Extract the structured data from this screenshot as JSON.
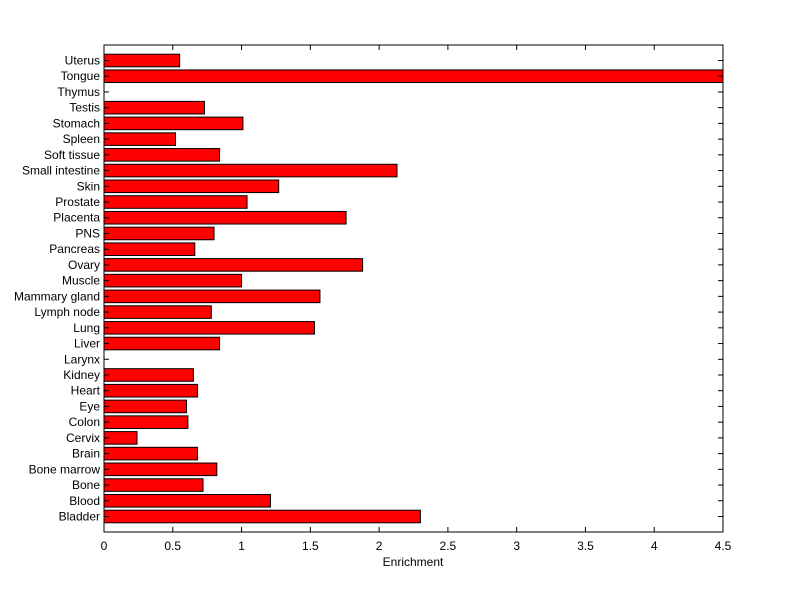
{
  "chart_data": {
    "type": "bar",
    "orientation": "horizontal",
    "title": "",
    "xlabel": "Enrichment",
    "ylabel": "",
    "xlim": [
      0,
      4.5
    ],
    "xticks": [
      0,
      0.5,
      1,
      1.5,
      2,
      2.5,
      3,
      3.5,
      4,
      4.5
    ],
    "xtick_labels": [
      "0",
      "0.5",
      "1",
      "1.5",
      "2",
      "2.5",
      "3",
      "3.5",
      "4",
      "4.5"
    ],
    "grid": false,
    "legend": "none",
    "categories": [
      "Uterus",
      "Tongue",
      "Thymus",
      "Testis",
      "Stomach",
      "Spleen",
      "Soft tissue",
      "Small intestine",
      "Skin",
      "Prostate",
      "Placenta",
      "PNS",
      "Pancreas",
      "Ovary",
      "Muscle",
      "Mammary gland",
      "Lymph node",
      "Lung",
      "Liver",
      "Larynx",
      "Kidney",
      "Heart",
      "Eye",
      "Colon",
      "Cervix",
      "Brain",
      "Bone marrow",
      "Bone",
      "Blood",
      "Bladder"
    ],
    "values": [
      0.55,
      4.5,
      0,
      0.73,
      1.01,
      0.52,
      0.84,
      2.13,
      1.27,
      1.04,
      1.76,
      0.8,
      0.66,
      1.88,
      1.0,
      1.57,
      0.78,
      1.53,
      0.84,
      0,
      0.65,
      0.68,
      0.6,
      0.61,
      0.24,
      0.68,
      0.82,
      0.72,
      1.21,
      2.3
    ],
    "colors": {
      "bar_fill": "#ff0000",
      "bar_stroke": "#000000",
      "axis": "#000000",
      "background": "#ffffff"
    }
  }
}
